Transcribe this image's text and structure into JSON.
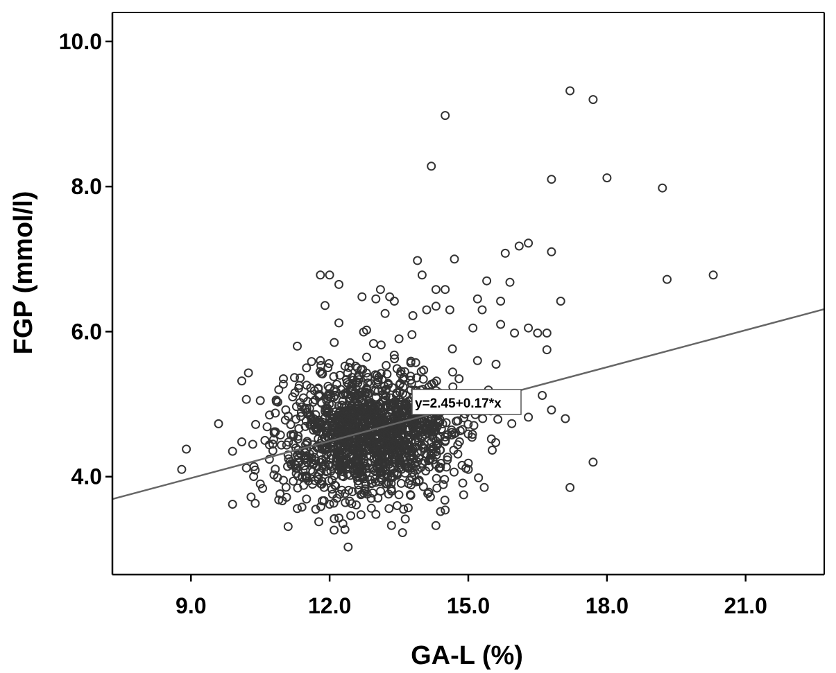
{
  "chart_data": {
    "type": "scatter",
    "title": "",
    "xlabel": "GA-L (%)",
    "ylabel": "FGP (mmol/l)",
    "xlim": [
      7.3,
      22.7
    ],
    "ylim": [
      2.65,
      10.4
    ],
    "x_ticks": [
      9.0,
      12.0,
      15.0,
      18.0,
      21.0
    ],
    "x_tick_labels": [
      "9.0",
      "12.0",
      "15.0",
      "18.0",
      "21.0"
    ],
    "y_ticks": [
      4.0,
      6.0,
      8.0,
      10.0
    ],
    "y_tick_labels": [
      "4.0",
      "6.0",
      "8.0",
      "10.0"
    ],
    "grid": false,
    "fit_line": {
      "intercept": 2.45,
      "slope": 0.17,
      "label": "y=2.45+0.17*x"
    },
    "series": [
      {
        "values": [
          [
            8.8,
            4.1
          ],
          [
            8.9,
            4.38
          ],
          [
            9.9,
            4.35
          ],
          [
            9.9,
            3.62
          ],
          [
            10.1,
            5.32
          ],
          [
            10.1,
            4.48
          ],
          [
            10.2,
            4.12
          ],
          [
            10.3,
            3.72
          ],
          [
            10.4,
            4.72
          ],
          [
            10.5,
            5.05
          ],
          [
            10.5,
            3.9
          ],
          [
            10.6,
            4.5
          ],
          [
            10.7,
            4.85
          ],
          [
            10.8,
            4.6
          ],
          [
            10.9,
            5.2
          ],
          [
            10.9,
            3.68
          ],
          [
            11.0,
            5.35
          ],
          [
            11.0,
            3.95
          ],
          [
            11.1,
            4.3
          ],
          [
            11.2,
            5.1
          ],
          [
            11.3,
            5.8
          ],
          [
            11.3,
            3.56
          ],
          [
            11.4,
            4.0
          ],
          [
            11.4,
            3.58
          ],
          [
            11.5,
            5.5
          ],
          [
            11.6,
            4.2
          ],
          [
            11.7,
            3.55
          ],
          [
            11.8,
            5.6
          ],
          [
            11.8,
            6.78
          ],
          [
            11.9,
            6.36
          ],
          [
            11.9,
            4.9
          ],
          [
            12.0,
            6.78
          ],
          [
            12.0,
            3.62
          ],
          [
            12.1,
            5.85
          ],
          [
            12.1,
            3.42
          ],
          [
            12.2,
            6.65
          ],
          [
            12.2,
            6.12
          ],
          [
            12.2,
            3.43
          ],
          [
            12.3,
            4.0
          ],
          [
            12.4,
            3.03
          ],
          [
            12.5,
            5.2
          ],
          [
            12.6,
            5.5
          ],
          [
            12.7,
            6.48
          ],
          [
            12.8,
            6.02
          ],
          [
            12.9,
            3.7
          ],
          [
            13.0,
            6.45
          ],
          [
            13.0,
            3.48
          ],
          [
            13.1,
            6.58
          ],
          [
            13.2,
            6.25
          ],
          [
            13.3,
            6.48
          ],
          [
            13.4,
            6.42
          ],
          [
            13.5,
            5.9
          ],
          [
            13.6,
            3.55
          ],
          [
            13.7,
            3.57
          ],
          [
            13.8,
            6.22
          ],
          [
            13.9,
            6.98
          ],
          [
            14.0,
            6.78
          ],
          [
            14.1,
            6.3
          ],
          [
            14.2,
            8.28
          ],
          [
            14.3,
            6.35
          ],
          [
            14.3,
            6.58
          ],
          [
            14.4,
            3.52
          ],
          [
            14.5,
            8.98
          ],
          [
            14.5,
            6.58
          ],
          [
            14.5,
            3.54
          ],
          [
            14.6,
            6.3
          ],
          [
            14.7,
            7.0
          ],
          [
            14.8,
            5.35
          ],
          [
            14.9,
            3.75
          ],
          [
            15.0,
            4.1
          ],
          [
            15.1,
            6.05
          ],
          [
            15.2,
            5.6
          ],
          [
            15.2,
            6.45
          ],
          [
            15.3,
            6.3
          ],
          [
            15.4,
            6.7
          ],
          [
            15.5,
            4.52
          ],
          [
            15.6,
            5.55
          ],
          [
            15.7,
            6.1
          ],
          [
            15.7,
            6.42
          ],
          [
            15.8,
            7.08
          ],
          [
            15.9,
            6.68
          ],
          [
            16.0,
            5.98
          ],
          [
            16.1,
            7.18
          ],
          [
            16.3,
            7.22
          ],
          [
            16.3,
            6.05
          ],
          [
            16.3,
            4.82
          ],
          [
            16.5,
            5.98
          ],
          [
            16.6,
            5.12
          ],
          [
            16.7,
            5.75
          ],
          [
            16.7,
            5.98
          ],
          [
            16.8,
            8.1
          ],
          [
            16.8,
            7.1
          ],
          [
            16.8,
            4.92
          ],
          [
            17.0,
            6.42
          ],
          [
            17.1,
            4.8
          ],
          [
            17.2,
            9.32
          ],
          [
            17.2,
            3.85
          ],
          [
            17.7,
            9.2
          ],
          [
            17.7,
            4.2
          ],
          [
            18.0,
            8.12
          ],
          [
            19.2,
            7.98
          ],
          [
            19.3,
            6.72
          ],
          [
            20.3,
            6.78
          ]
        ]
      }
    ]
  }
}
